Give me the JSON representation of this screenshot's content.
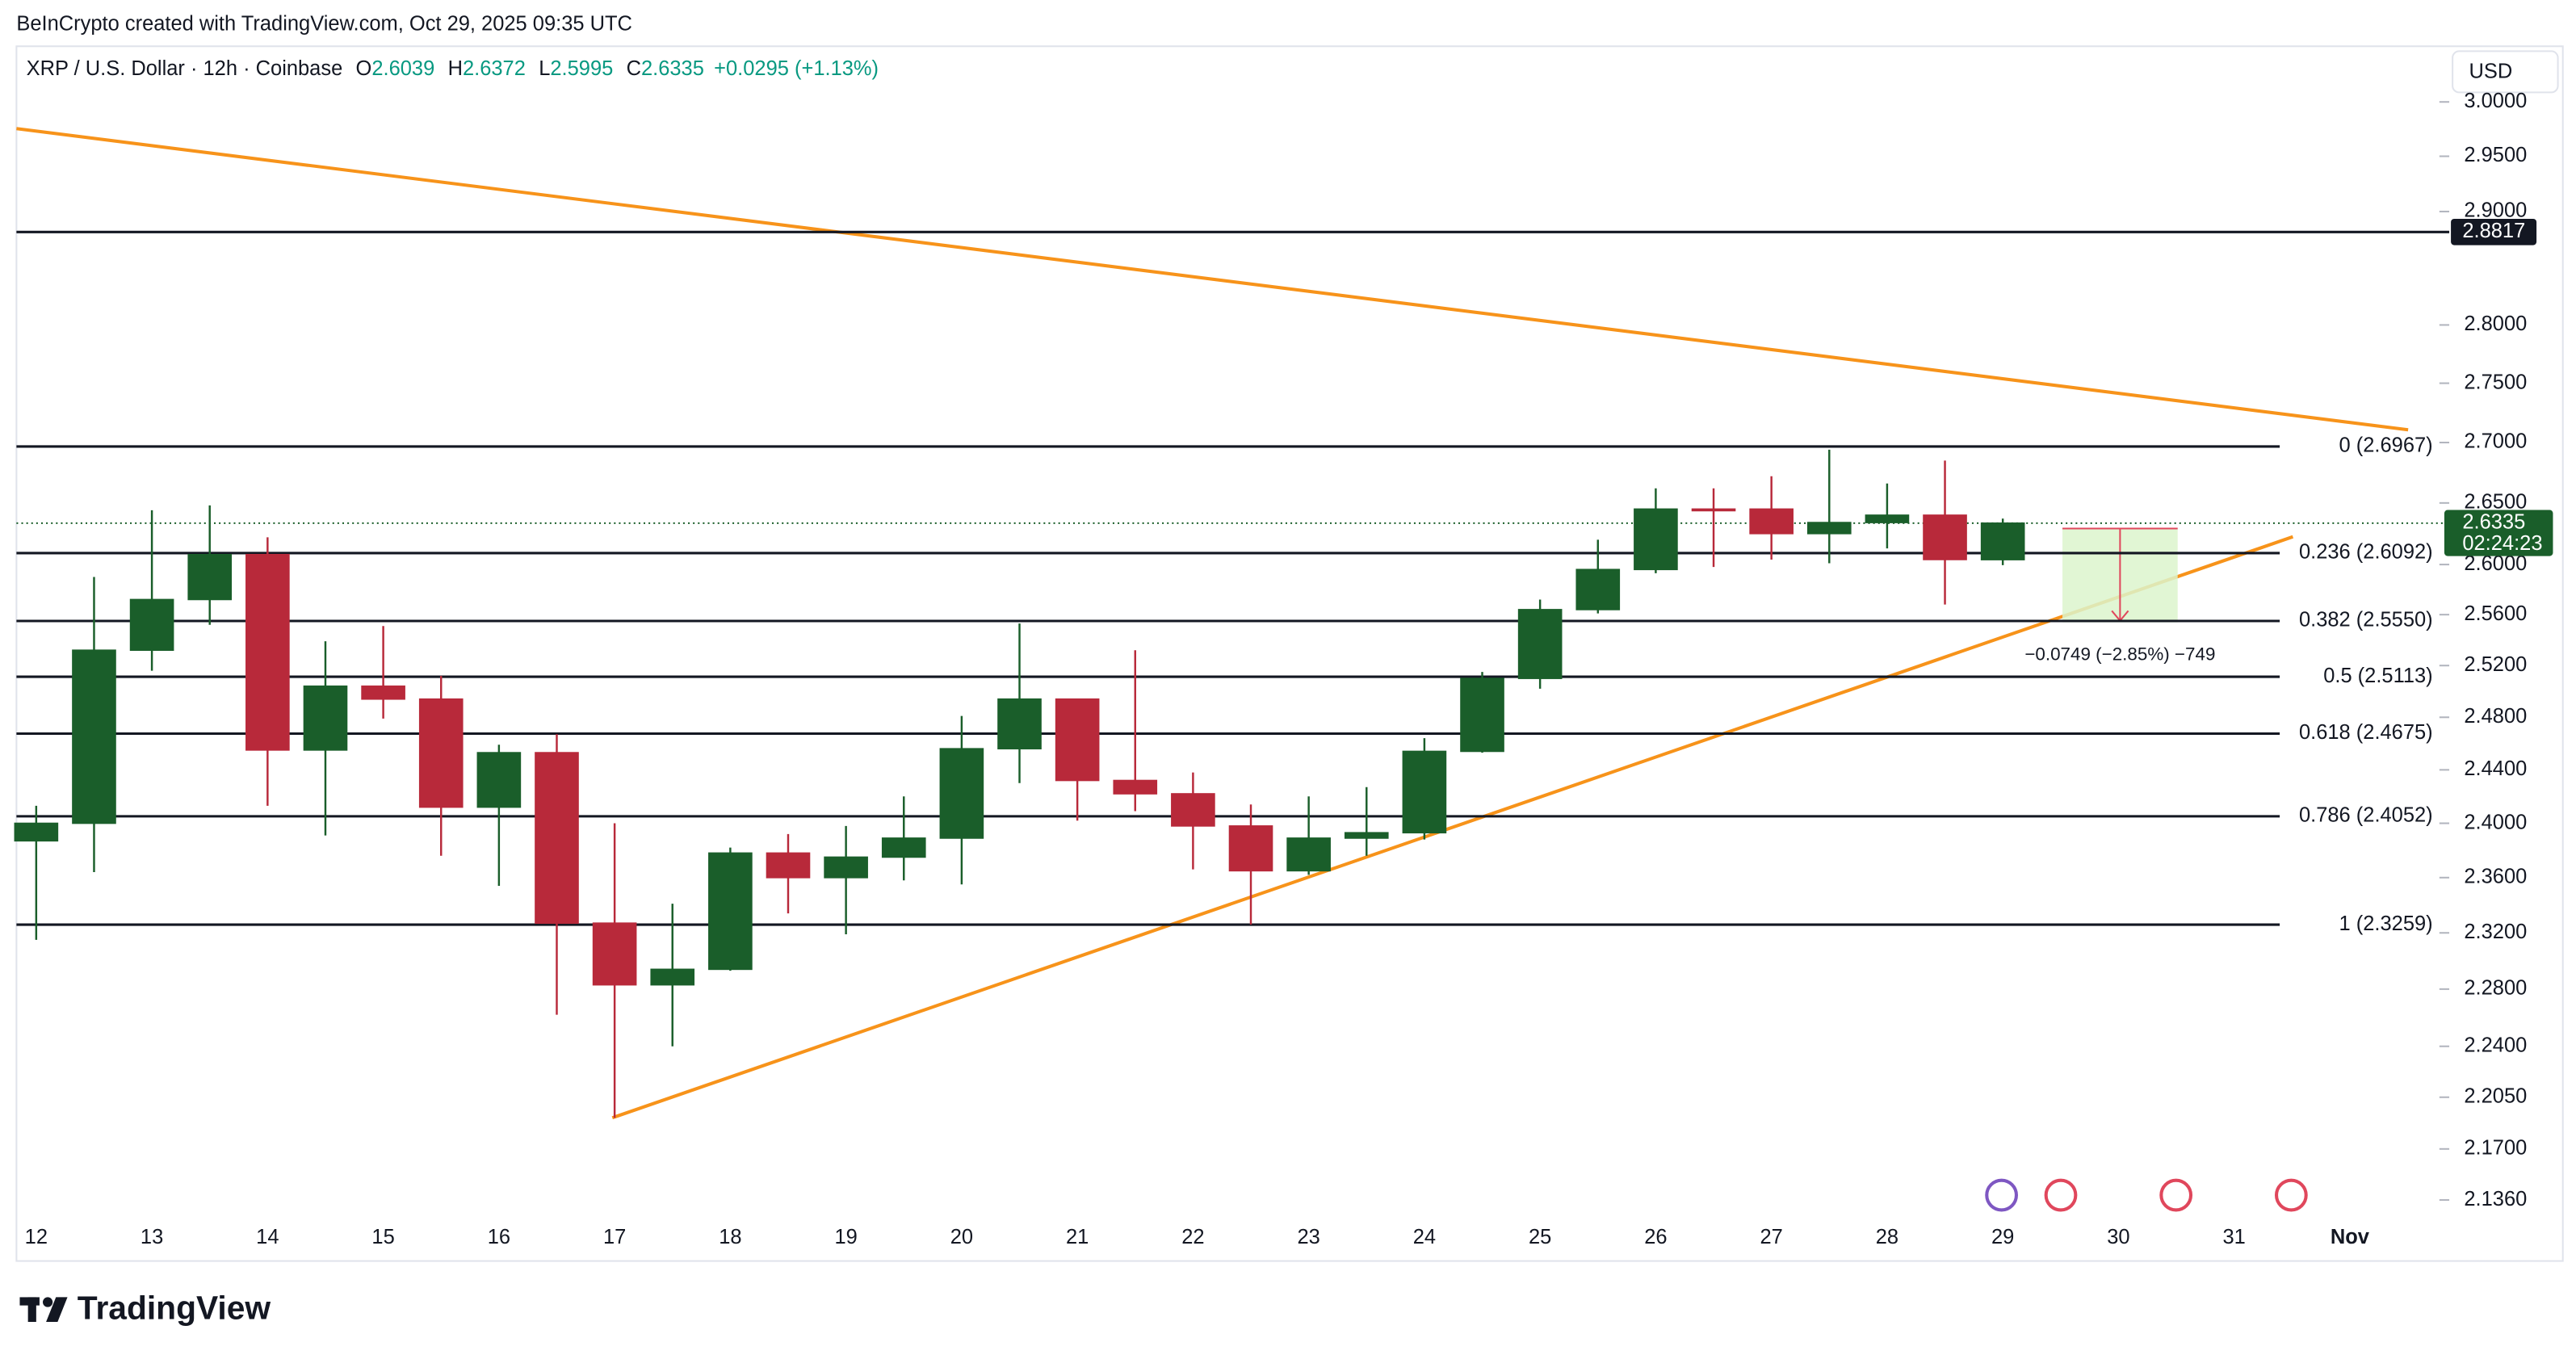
{
  "header": {
    "attribution": "BeInCrypto created with TradingView.com, Oct 29, 2025 09:35 UTC",
    "symbol": "XRP / U.S. Dollar · 12h · Coinbase",
    "ohlc_labels": [
      "O",
      "H",
      "L",
      "C"
    ],
    "change": "+0.0295 (+1.13%)",
    "currency": "USD",
    "logo": "TradingView"
  },
  "chart_data": {
    "type": "candlestick",
    "categories": [
      "12",
      null,
      "13",
      null,
      "14",
      null,
      "15",
      null,
      "16",
      null,
      "17",
      null,
      "18",
      null,
      "19",
      null,
      "20",
      null,
      "21",
      null,
      "22",
      null,
      "23",
      null,
      "24",
      null,
      "25",
      null,
      "26",
      null,
      "27",
      null,
      "28",
      null,
      "29"
    ],
    "future_categories": [
      "30",
      "31",
      "Nov"
    ],
    "open": [
      2.387,
      2.4,
      2.532,
      2.572,
      2.608,
      2.455,
      2.504,
      2.494,
      2.412,
      2.453,
      2.327,
      2.283,
      2.294,
      2.378,
      2.36,
      2.375,
      2.389,
      2.456,
      2.494,
      2.432,
      2.422,
      2.398,
      2.365,
      2.389,
      2.393,
      2.454,
      2.51,
      2.564,
      2.596,
      2.645,
      2.645,
      2.625,
      2.634,
      2.64,
      2.6039
    ],
    "high": [
      2.413,
      2.59,
      2.644,
      2.648,
      2.622,
      2.539,
      2.551,
      2.512,
      2.459,
      2.467,
      2.4,
      2.341,
      2.382,
      2.392,
      2.398,
      2.42,
      2.481,
      2.553,
      2.494,
      2.532,
      2.438,
      2.414,
      2.42,
      2.427,
      2.464,
      2.515,
      2.572,
      2.62,
      2.662,
      2.662,
      2.672,
      2.694,
      2.666,
      2.685,
      2.6372
    ],
    "low": [
      2.315,
      2.364,
      2.516,
      2.552,
      2.413,
      2.391,
      2.479,
      2.376,
      2.354,
      2.262,
      2.191,
      2.24,
      2.293,
      2.334,
      2.319,
      2.358,
      2.355,
      2.43,
      2.402,
      2.409,
      2.366,
      2.326,
      2.362,
      2.376,
      2.388,
      2.453,
      2.502,
      2.561,
      2.593,
      2.598,
      2.604,
      2.601,
      2.613,
      2.568,
      2.5995
    ],
    "close": [
      2.4,
      2.532,
      2.572,
      2.608,
      2.455,
      2.504,
      2.494,
      2.412,
      2.453,
      2.327,
      2.283,
      2.294,
      2.378,
      2.36,
      2.375,
      2.389,
      2.456,
      2.494,
      2.432,
      2.422,
      2.398,
      2.365,
      2.389,
      2.393,
      2.454,
      2.51,
      2.564,
      2.596,
      2.645,
      2.644,
      2.625,
      2.634,
      2.64,
      2.604,
      2.6335
    ],
    "up_color": "#1a5e2a",
    "down_color": "#b8293a",
    "ylim": [
      2.124,
      3.049
    ],
    "log_scale": true,
    "yticks": [
      {
        "value": 3.0,
        "label": "3.0000"
      },
      {
        "value": 2.95,
        "label": "2.9500"
      },
      {
        "value": 2.9,
        "label": "2.9000"
      },
      {
        "value": 2.8,
        "label": "2.8000"
      },
      {
        "value": 2.75,
        "label": "2.7500"
      },
      {
        "value": 2.7,
        "label": "2.7000"
      },
      {
        "value": 2.65,
        "label": "2.6500"
      },
      {
        "value": 2.6,
        "label": "2.6000"
      },
      {
        "value": 2.56,
        "label": "2.5600"
      },
      {
        "value": 2.52,
        "label": "2.5200"
      },
      {
        "value": 2.48,
        "label": "2.4800"
      },
      {
        "value": 2.44,
        "label": "2.4400"
      },
      {
        "value": 2.4,
        "label": "2.4000"
      },
      {
        "value": 2.36,
        "label": "2.3600"
      },
      {
        "value": 2.32,
        "label": "2.3200"
      },
      {
        "value": 2.28,
        "label": "2.2800"
      },
      {
        "value": 2.24,
        "label": "2.2400"
      },
      {
        "value": 2.205,
        "label": "2.2050"
      },
      {
        "value": 2.17,
        "label": "2.1700"
      },
      {
        "value": 2.136,
        "label": "2.1360"
      }
    ],
    "grid": false,
    "levels": [
      {
        "label": "0 (2.6967)",
        "value": 2.6967
      },
      {
        "label": "0.236 (2.6092)",
        "value": 2.6092
      },
      {
        "label": "0.382 (2.5550)",
        "value": 2.555
      },
      {
        "label": "0.5 (2.5113)",
        "value": 2.5113
      },
      {
        "label": "0.618 (2.4675)",
        "value": 2.4675
      },
      {
        "label": "0.786 (2.4052)",
        "value": 2.4052
      },
      {
        "label": "1 (2.3259)",
        "value": 2.3259
      }
    ],
    "resistance": 2.8817,
    "last_price_countdown": "02:24:23",
    "measure_label": "−0.0749 (−2.85%) −749"
  }
}
